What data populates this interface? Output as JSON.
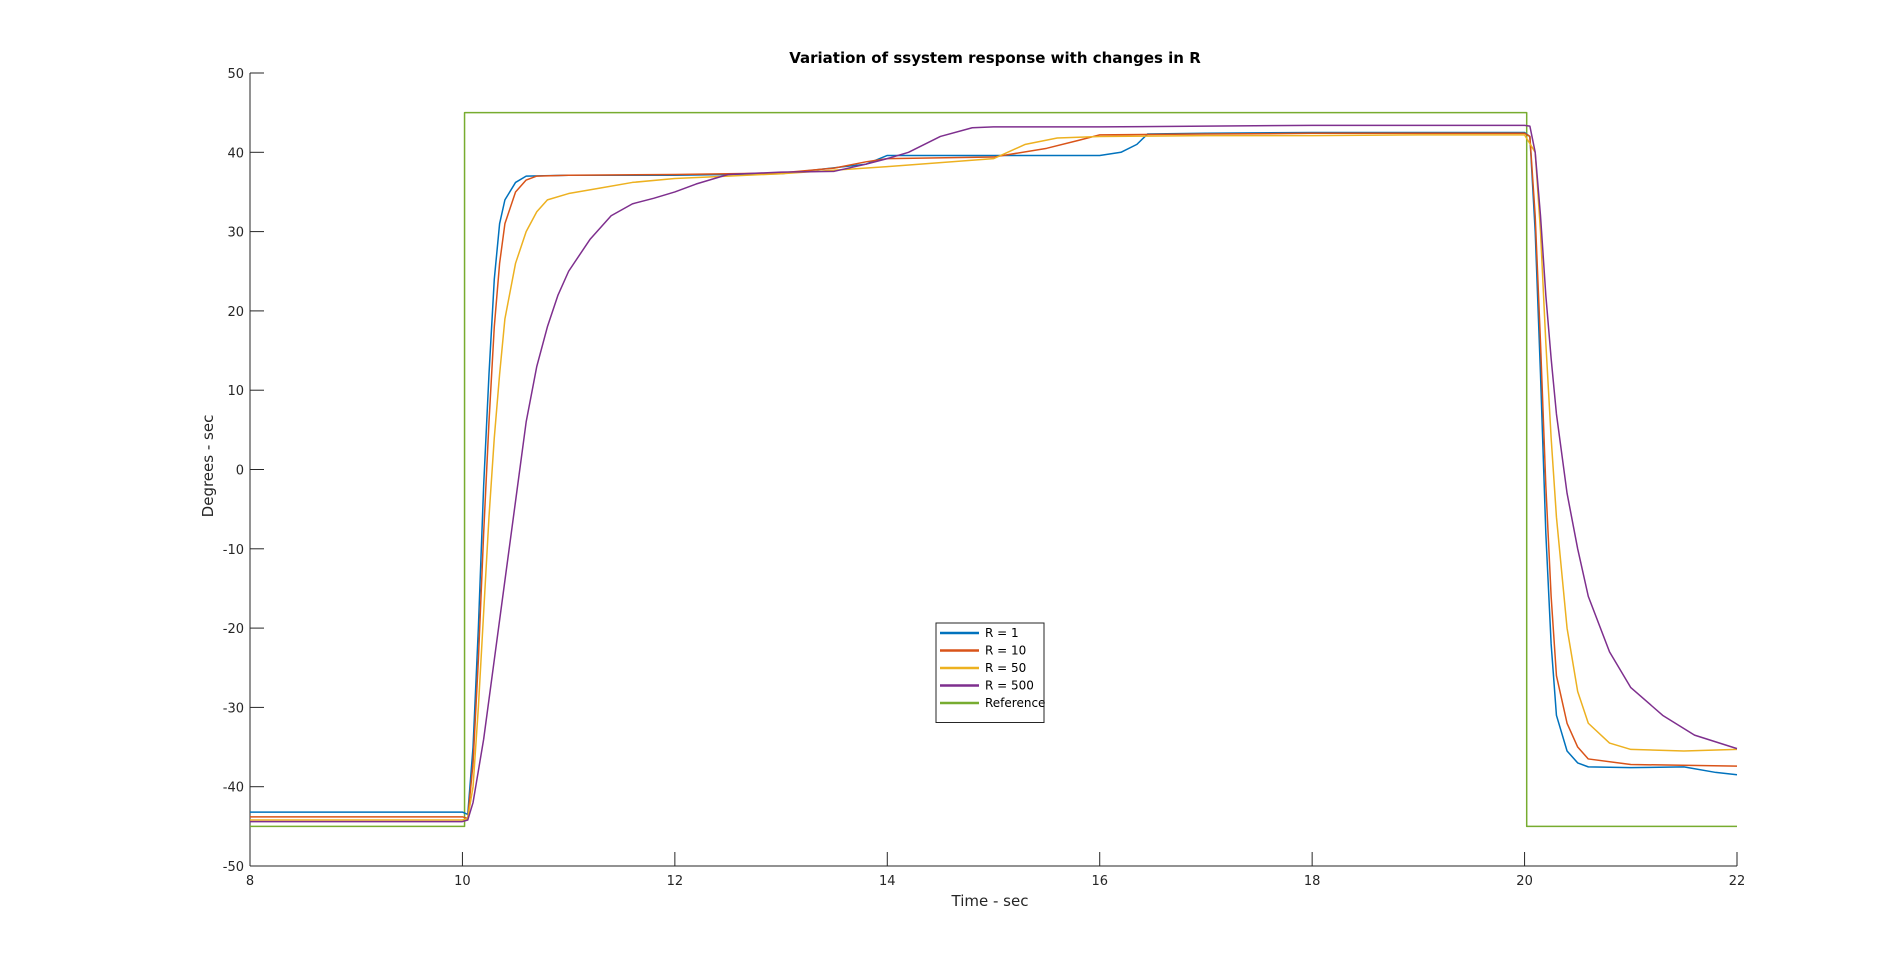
{
  "chart_data": {
    "type": "line",
    "title": "Variation of ssystem response with changes in R",
    "xlabel": "Time - sec",
    "ylabel": "Degrees - sec",
    "xlim": [
      8,
      22
    ],
    "ylim": [
      -50,
      50
    ],
    "xticks": [
      8,
      10,
      12,
      14,
      16,
      18,
      20,
      22
    ],
    "yticks": [
      50,
      40,
      30,
      20,
      10,
      0,
      -10,
      -20,
      -30,
      -40,
      -50
    ],
    "grid": false,
    "legend_position": "center",
    "series": [
      {
        "name": "R = 1",
        "color": "#0072BD",
        "points": [
          [
            8,
            -43.2
          ],
          [
            10,
            -43.2
          ],
          [
            10.05,
            -43.5
          ],
          [
            10.1,
            -35
          ],
          [
            10.15,
            -20
          ],
          [
            10.2,
            -2
          ],
          [
            10.25,
            12
          ],
          [
            10.3,
            24
          ],
          [
            10.35,
            31
          ],
          [
            10.4,
            34
          ],
          [
            10.5,
            36.2
          ],
          [
            10.6,
            37
          ],
          [
            11,
            37.1
          ],
          [
            12,
            37.1
          ],
          [
            13,
            37.3
          ],
          [
            13.8,
            38.5
          ],
          [
            14,
            39.6
          ],
          [
            15,
            39.6
          ],
          [
            16,
            39.6
          ],
          [
            16.2,
            40
          ],
          [
            16.35,
            41
          ],
          [
            16.45,
            42.3
          ],
          [
            17,
            42.4
          ],
          [
            18,
            42.5
          ],
          [
            19,
            42.5
          ],
          [
            20,
            42.5
          ],
          [
            20.05,
            42
          ],
          [
            20.1,
            30
          ],
          [
            20.15,
            12
          ],
          [
            20.2,
            -8
          ],
          [
            20.25,
            -22
          ],
          [
            20.3,
            -31
          ],
          [
            20.4,
            -35.5
          ],
          [
            20.5,
            -37
          ],
          [
            20.6,
            -37.5
          ],
          [
            21,
            -37.6
          ],
          [
            21.5,
            -37.5
          ],
          [
            21.8,
            -38.2
          ],
          [
            22,
            -38.5
          ]
        ]
      },
      {
        "name": "R = 10",
        "color": "#D95319",
        "points": [
          [
            8,
            -43.8
          ],
          [
            10,
            -43.8
          ],
          [
            10.05,
            -44
          ],
          [
            10.1,
            -37
          ],
          [
            10.15,
            -24
          ],
          [
            10.2,
            -8
          ],
          [
            10.25,
            6
          ],
          [
            10.3,
            18
          ],
          [
            10.35,
            26
          ],
          [
            10.4,
            31
          ],
          [
            10.5,
            35
          ],
          [
            10.6,
            36.5
          ],
          [
            10.7,
            37
          ],
          [
            11,
            37.1
          ],
          [
            12,
            37.2
          ],
          [
            13,
            37.4
          ],
          [
            13.5,
            38
          ],
          [
            13.8,
            38.8
          ],
          [
            14,
            39.2
          ],
          [
            15,
            39.4
          ],
          [
            15.5,
            40.5
          ],
          [
            15.8,
            41.5
          ],
          [
            16,
            42.2
          ],
          [
            17,
            42.3
          ],
          [
            18,
            42.4
          ],
          [
            19,
            42.4
          ],
          [
            20,
            42.4
          ],
          [
            20.05,
            42
          ],
          [
            20.1,
            32
          ],
          [
            20.15,
            16
          ],
          [
            20.2,
            -2
          ],
          [
            20.25,
            -16
          ],
          [
            20.3,
            -26
          ],
          [
            20.4,
            -32
          ],
          [
            20.5,
            -35
          ],
          [
            20.6,
            -36.5
          ],
          [
            21,
            -37.2
          ],
          [
            22,
            -37.4
          ]
        ]
      },
      {
        "name": "R = 50",
        "color": "#EDB120",
        "points": [
          [
            8,
            -44.2
          ],
          [
            10,
            -44.2
          ],
          [
            10.05,
            -44
          ],
          [
            10.1,
            -40
          ],
          [
            10.15,
            -30
          ],
          [
            10.2,
            -18
          ],
          [
            10.25,
            -6
          ],
          [
            10.3,
            4
          ],
          [
            10.35,
            12
          ],
          [
            10.4,
            19
          ],
          [
            10.5,
            26
          ],
          [
            10.6,
            30
          ],
          [
            10.7,
            32.5
          ],
          [
            10.8,
            34
          ],
          [
            11,
            34.8
          ],
          [
            11.3,
            35.5
          ],
          [
            11.6,
            36.2
          ],
          [
            12,
            36.7
          ],
          [
            12.5,
            37
          ],
          [
            13,
            37.3
          ],
          [
            14,
            38.2
          ],
          [
            15,
            39.2
          ],
          [
            15.3,
            41
          ],
          [
            15.6,
            41.8
          ],
          [
            16,
            42
          ],
          [
            17,
            42.1
          ],
          [
            18,
            42.1
          ],
          [
            19,
            42.2
          ],
          [
            20,
            42.2
          ],
          [
            20.1,
            40
          ],
          [
            20.15,
            30
          ],
          [
            20.2,
            16
          ],
          [
            20.25,
            4
          ],
          [
            20.3,
            -6
          ],
          [
            20.4,
            -20
          ],
          [
            20.5,
            -28
          ],
          [
            20.6,
            -32
          ],
          [
            20.8,
            -34.5
          ],
          [
            21,
            -35.3
          ],
          [
            21.5,
            -35.5
          ],
          [
            22,
            -35.3
          ]
        ]
      },
      {
        "name": "R = 500",
        "color": "#7E2F8E",
        "points": [
          [
            8,
            -44.4
          ],
          [
            10,
            -44.4
          ],
          [
            10.05,
            -44.2
          ],
          [
            10.1,
            -42
          ],
          [
            10.2,
            -34
          ],
          [
            10.3,
            -24
          ],
          [
            10.4,
            -14
          ],
          [
            10.5,
            -4
          ],
          [
            10.6,
            6
          ],
          [
            10.7,
            13
          ],
          [
            10.8,
            18
          ],
          [
            10.9,
            22
          ],
          [
            11,
            25
          ],
          [
            11.2,
            29
          ],
          [
            11.4,
            32
          ],
          [
            11.6,
            33.5
          ],
          [
            11.8,
            34.2
          ],
          [
            12,
            35
          ],
          [
            12.2,
            36
          ],
          [
            12.5,
            37.2
          ],
          [
            13,
            37.5
          ],
          [
            13.5,
            37.6
          ],
          [
            13.8,
            38.5
          ],
          [
            14,
            39.2
          ],
          [
            14.2,
            40
          ],
          [
            14.5,
            42
          ],
          [
            14.8,
            43.1
          ],
          [
            15,
            43.2
          ],
          [
            16,
            43.2
          ],
          [
            17,
            43.3
          ],
          [
            18,
            43.4
          ],
          [
            19,
            43.4
          ],
          [
            20,
            43.4
          ],
          [
            20.05,
            43.3
          ],
          [
            20.1,
            40
          ],
          [
            20.15,
            32
          ],
          [
            20.2,
            22
          ],
          [
            20.25,
            14
          ],
          [
            20.3,
            7
          ],
          [
            20.4,
            -3
          ],
          [
            20.5,
            -10
          ],
          [
            20.6,
            -16
          ],
          [
            20.8,
            -23
          ],
          [
            21,
            -27.5
          ],
          [
            21.3,
            -31
          ],
          [
            21.6,
            -33.5
          ],
          [
            22,
            -35.2
          ]
        ]
      },
      {
        "name": "Reference",
        "color": "#77AC30",
        "points": [
          [
            8,
            -45
          ],
          [
            10.02,
            -45
          ],
          [
            10.02,
            45
          ],
          [
            20.02,
            45
          ],
          [
            20.02,
            -45
          ],
          [
            22,
            -45
          ]
        ]
      }
    ]
  },
  "legend": {
    "items": [
      "R = 1",
      "R = 10",
      "R = 50",
      "R = 500",
      "Reference"
    ]
  }
}
